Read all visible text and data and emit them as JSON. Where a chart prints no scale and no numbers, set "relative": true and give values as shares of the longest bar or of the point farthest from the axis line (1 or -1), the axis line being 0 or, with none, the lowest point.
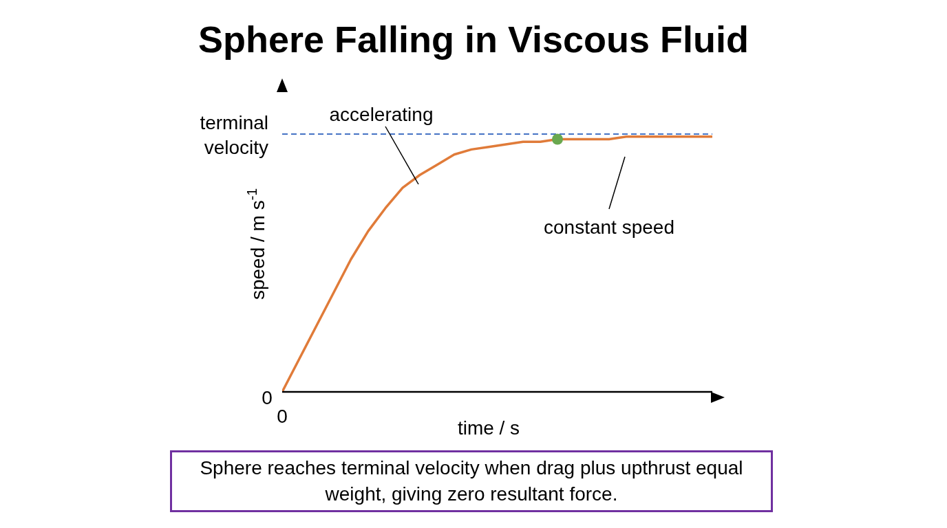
{
  "chart_data": {
    "type": "line",
    "title": "Sphere Falling in Viscous Fluid",
    "xlabel": "time / s",
    "ylabel": "speed / m s$^{-1}$",
    "relative": true,
    "categories": [
      null,
      null,
      null,
      null,
      null,
      null,
      null,
      null,
      null,
      null,
      null,
      null,
      null,
      null,
      null,
      null,
      null,
      null,
      null,
      null,
      null,
      null,
      null,
      null,
      null,
      null
    ],
    "series": [
      {
        "color": "#e07b39",
        "values": [
          0,
          0.13,
          0.26,
          0.39,
          0.52,
          0.63,
          0.72,
          0.8,
          0.85,
          0.89,
          0.93,
          0.95,
          0.96,
          0.97,
          0.98,
          0.98,
          0.99,
          0.99,
          0.99,
          0.99,
          1,
          1,
          1,
          1,
          1,
          1
        ]
      },
      {
        "type": "line",
        "marker": "circle",
        "color": "#6aa84f",
        "values": [
          null,
          null,
          null,
          null,
          null,
          null,
          null,
          null,
          null,
          null,
          null,
          null,
          null,
          null,
          null,
          null,
          0.99,
          null,
          null,
          null,
          null,
          null,
          null,
          null,
          null,
          null
        ]
      }
    ],
    "ref_lines": [
      {
        "axis": "y",
        "value": 1.01,
        "label": "terminal velocity",
        "color": "#4472c4",
        "line_style": "dashed"
      }
    ],
    "annotations": [
      "accelerating",
      "constant speed",
      "0",
      "0",
      "Sphere reaches terminal velocity when drag plus upthrust equal weight, giving zero resultant force."
    ]
  }
}
